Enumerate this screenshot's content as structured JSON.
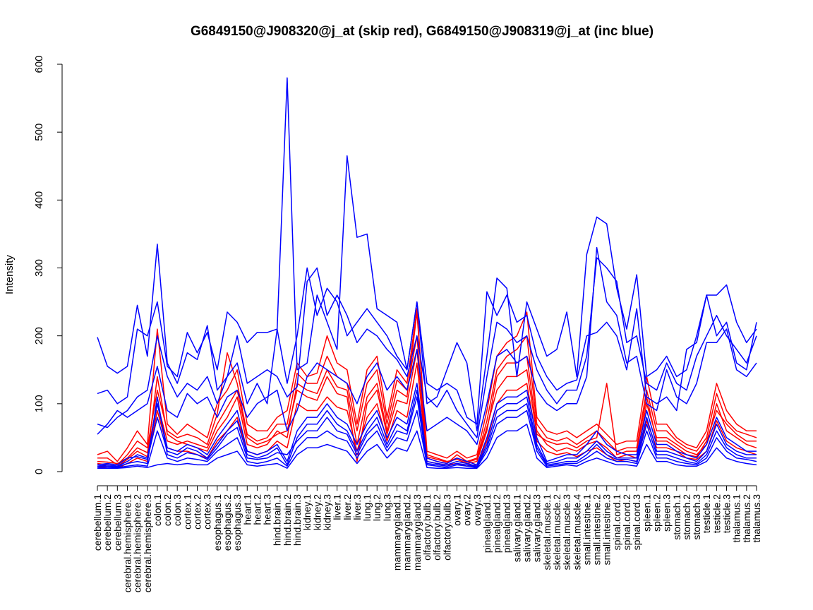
{
  "chart_data": {
    "type": "line",
    "title": "G6849150@J908320@j_at (skip red), G6849150@J908319@j_at (inc blue)",
    "xlabel": "",
    "ylabel": "Intensity",
    "ylim": [
      0,
      600
    ],
    "yticks": [
      0,
      100,
      200,
      300,
      400,
      500,
      600
    ],
    "grid": false,
    "colors": {
      "skip": "#ff0000",
      "inc": "#0000ff",
      "axis": "#000000"
    },
    "categories": [
      "cerebellum.1",
      "cerebellum.2",
      "cerebellum.3",
      "cerebral.hemisphere.1",
      "cerebral.hemisphere.2",
      "cerebral.hemisphere.3",
      "colon.1",
      "colon.2",
      "colon.3",
      "cortex.1",
      "cortex.2",
      "cortex.3",
      "esophagus.1",
      "esophagus.2",
      "esophagus.3",
      "heart.1",
      "heart.2",
      "heart.3",
      "hind.brain.1",
      "hind.brain.2",
      "hind.brain.3",
      "kidney.1",
      "kidney.2",
      "kidney.3",
      "liver.1",
      "liver.2",
      "liver.3",
      "lung.1",
      "lung.2",
      "lung.3",
      "mammarygland.1",
      "mammarygland.2",
      "mammarygland.3",
      "olfactory.bulb.1",
      "olfactory.bulb.2",
      "olfactory.bulb.3",
      "ovary.1",
      "ovary.2",
      "ovary.3",
      "pinealgland.1",
      "pinealgland.2",
      "pinealgland.3",
      "salivary.gland.1",
      "salivary.gland.2",
      "salivary.gland.3",
      "skeletal.muscle.1",
      "skeletal.muscle.2",
      "skeletal.muscle.3",
      "skeletal.muscle.4",
      "small.intestine.1",
      "small.intestine.2",
      "small.intestine.3",
      "spinal.cord.1",
      "spinal.cord.2",
      "spinal.cord.3",
      "spleen.1",
      "spleen.2",
      "spleen.3",
      "stomach.1",
      "stomach.2",
      "stomach.3",
      "testicle.1",
      "testicle.2",
      "testicle.3",
      "thalamus.1",
      "thalamus.2",
      "thalamus.3"
    ],
    "series": [
      {
        "name": "skip-1",
        "group": "skip",
        "values": [
          12,
          10,
          8,
          18,
          30,
          22,
          140,
          55,
          45,
          40,
          35,
          30,
          60,
          80,
          110,
          40,
          35,
          40,
          60,
          50,
          130,
          120,
          115,
          150,
          125,
          120,
          40,
          110,
          130,
          60,
          120,
          110,
          235,
          25,
          20,
          15,
          18,
          12,
          15,
          60,
          140,
          160,
          160,
          170,
          60,
          40,
          30,
          35,
          30,
          40,
          45,
          35,
          20,
          25,
          20,
          100,
          50,
          50,
          40,
          30,
          25,
          40,
          100,
          60,
          50,
          40,
          35
        ]
      },
      {
        "name": "skip-2",
        "group": "skip",
        "values": [
          25,
          30,
          15,
          35,
          60,
          40,
          210,
          70,
          55,
          70,
          60,
          50,
          100,
          120,
          150,
          70,
          60,
          60,
          80,
          90,
          160,
          140,
          145,
          200,
          160,
          150,
          70,
          150,
          170,
          80,
          150,
          130,
          240,
          30,
          25,
          20,
          30,
          20,
          25,
          90,
          170,
          190,
          200,
          235,
          80,
          60,
          55,
          60,
          50,
          60,
          70,
          55,
          40,
          45,
          45,
          140,
          70,
          70,
          50,
          40,
          35,
          60,
          130,
          90,
          70,
          60,
          60
        ]
      },
      {
        "name": "skip-3",
        "group": "skip",
        "values": [
          20,
          20,
          10,
          25,
          45,
          35,
          120,
          60,
          50,
          55,
          50,
          40,
          85,
          175,
          130,
          55,
          45,
          50,
          70,
          70,
          145,
          130,
          130,
          170,
          140,
          130,
          60,
          130,
          150,
          70,
          135,
          120,
          200,
          20,
          15,
          12,
          25,
          15,
          20,
          75,
          150,
          170,
          180,
          200,
          70,
          50,
          45,
          50,
          40,
          50,
          60,
          45,
          30,
          35,
          35,
          120,
          60,
          60,
          45,
          35,
          30,
          50,
          115,
          75,
          60,
          55,
          50
        ]
      },
      {
        "name": "skip-4",
        "group": "skip",
        "values": [
          8,
          6,
          5,
          12,
          20,
          15,
          90,
          35,
          30,
          30,
          25,
          20,
          45,
          60,
          80,
          30,
          25,
          30,
          45,
          35,
          100,
          90,
          90,
          110,
          95,
          90,
          30,
          80,
          100,
          45,
          90,
          80,
          160,
          15,
          12,
          10,
          12,
          8,
          10,
          45,
          100,
          120,
          120,
          130,
          45,
          30,
          25,
          28,
          22,
          30,
          35,
          25,
          15,
          18,
          15,
          75,
          35,
          35,
          30,
          20,
          18,
          30,
          75,
          45,
          35,
          30,
          25
        ]
      },
      {
        "name": "skip-5",
        "group": "skip",
        "values": [
          15,
          14,
          12,
          20,
          35,
          28,
          100,
          45,
          40,
          45,
          40,
          35,
          70,
          95,
          120,
          50,
          40,
          45,
          55,
          60,
          120,
          110,
          105,
          140,
          115,
          110,
          15,
          100,
          120,
          55,
          105,
          100,
          180,
          22,
          18,
          14,
          20,
          14,
          18,
          65,
          120,
          140,
          140,
          150,
          55,
          45,
          40,
          42,
          35,
          45,
          50,
          130,
          25,
          30,
          30,
          110,
          45,
          45,
          35,
          25,
          22,
          45,
          90,
          70,
          55,
          45,
          45
        ]
      },
      {
        "name": "inc-1",
        "group": "inc",
        "values": [
          198,
          155,
          145,
          155,
          245,
          170,
          335,
          160,
          130,
          175,
          165,
          215,
          120,
          140,
          160,
          100,
          130,
          100,
          210,
          580,
          150,
          160,
          260,
          220,
          180,
          465,
          345,
          350,
          240,
          230,
          220,
          150,
          250,
          100,
          110,
          150,
          190,
          160,
          60,
          170,
          285,
          270,
          140,
          250,
          210,
          170,
          180,
          235,
          140,
          320,
          375,
          365,
          270,
          210,
          290,
          140,
          150,
          170,
          140,
          150,
          200,
          260,
          260,
          275,
          220,
          190,
          210
        ]
      },
      {
        "name": "inc-2",
        "group": "inc",
        "values": [
          115,
          120,
          100,
          110,
          210,
          200,
          250,
          155,
          140,
          205,
          175,
          205,
          150,
          235,
          220,
          190,
          205,
          205,
          210,
          130,
          200,
          300,
          230,
          270,
          250,
          200,
          220,
          240,
          220,
          200,
          170,
          150,
          250,
          130,
          120,
          130,
          120,
          80,
          70,
          265,
          230,
          260,
          220,
          230,
          170,
          140,
          120,
          130,
          135,
          200,
          205,
          220,
          200,
          150,
          240,
          110,
          100,
          110,
          90,
          180,
          190,
          260,
          200,
          220,
          160,
          150,
          220
        ]
      },
      {
        "name": "inc-3",
        "group": "inc",
        "values": [
          70,
          65,
          80,
          90,
          110,
          120,
          200,
          140,
          110,
          130,
          120,
          140,
          100,
          140,
          200,
          130,
          140,
          150,
          140,
          110,
          125,
          280,
          300,
          230,
          260,
          230,
          190,
          210,
          200,
          180,
          165,
          140,
          200,
          110,
          95,
          120,
          90,
          70,
          50,
          140,
          220,
          210,
          190,
          200,
          150,
          120,
          100,
          120,
          120,
          170,
          315,
          300,
          280,
          190,
          200,
          130,
          120,
          160,
          130,
          120,
          170,
          200,
          230,
          200,
          180,
          160,
          200
        ]
      },
      {
        "name": "inc-4",
        "group": "inc",
        "values": [
          55,
          70,
          90,
          80,
          90,
          100,
          155,
          90,
          80,
          115,
          100,
          110,
          80,
          110,
          120,
          80,
          100,
          110,
          120,
          60,
          90,
          140,
          160,
          150,
          140,
          130,
          100,
          140,
          160,
          120,
          140,
          120,
          180,
          60,
          70,
          80,
          70,
          60,
          40,
          100,
          170,
          180,
          160,
          170,
          120,
          100,
          90,
          100,
          100,
          140,
          330,
          250,
          230,
          160,
          170,
          100,
          90,
          150,
          110,
          100,
          130,
          190,
          190,
          210,
          150,
          140,
          160
        ]
      },
      {
        "name": "inc-5",
        "group": "inc",
        "values": [
          8,
          10,
          8,
          15,
          25,
          20,
          100,
          35,
          30,
          40,
          35,
          25,
          50,
          70,
          90,
          30,
          25,
          30,
          40,
          15,
          60,
          80,
          80,
          100,
          80,
          70,
          40,
          70,
          90,
          50,
          80,
          70,
          130,
          20,
          15,
          12,
          20,
          15,
          10,
          50,
          100,
          110,
          110,
          120,
          50,
          15,
          20,
          25,
          25,
          40,
          60,
          40,
          30,
          25,
          25,
          90,
          40,
          40,
          30,
          25,
          20,
          40,
          80,
          50,
          40,
          30,
          30
        ]
      },
      {
        "name": "inc-6",
        "group": "inc",
        "values": [
          10,
          12,
          10,
          20,
          22,
          18,
          80,
          30,
          25,
          35,
          30,
          20,
          40,
          60,
          75,
          25,
          20,
          25,
          35,
          10,
          50,
          70,
          70,
          90,
          70,
          60,
          30,
          60,
          80,
          40,
          70,
          60,
          120,
          15,
          12,
          10,
          15,
          12,
          8,
          40,
          90,
          100,
          100,
          110,
          40,
          12,
          15,
          20,
          20,
          30,
          45,
          30,
          20,
          20,
          20,
          80,
          30,
          30,
          25,
          20,
          15,
          30,
          70,
          40,
          30,
          25,
          25
        ]
      },
      {
        "name": "inc-7",
        "group": "inc",
        "values": [
          6,
          6,
          6,
          8,
          10,
          8,
          60,
          20,
          15,
          20,
          18,
          15,
          30,
          40,
          50,
          15,
          12,
          15,
          20,
          8,
          35,
          50,
          50,
          60,
          50,
          45,
          20,
          45,
          60,
          30,
          50,
          45,
          90,
          10,
          8,
          6,
          10,
          8,
          6,
          30,
          70,
          80,
          80,
          90,
          30,
          8,
          10,
          12,
          12,
          20,
          30,
          20,
          15,
          15,
          12,
          60,
          20,
          20,
          15,
          12,
          10,
          20,
          50,
          30,
          20,
          18,
          15
        ]
      },
      {
        "name": "inc-8",
        "group": "inc",
        "values": [
          5,
          5,
          5,
          6,
          8,
          6,
          10,
          12,
          10,
          12,
          10,
          10,
          20,
          25,
          30,
          10,
          8,
          10,
          12,
          5,
          25,
          35,
          35,
          40,
          35,
          30,
          12,
          30,
          40,
          20,
          35,
          30,
          60,
          6,
          5,
          5,
          6,
          5,
          5,
          20,
          50,
          60,
          60,
          70,
          20,
          6,
          8,
          10,
          8,
          15,
          20,
          15,
          10,
          10,
          8,
          40,
          15,
          15,
          10,
          8,
          8,
          15,
          35,
          20,
          15,
          12,
          10
        ]
      },
      {
        "name": "inc-9",
        "group": "inc",
        "values": [
          8,
          8,
          7,
          12,
          15,
          12,
          110,
          25,
          20,
          28,
          25,
          18,
          35,
          55,
          65,
          20,
          18,
          20,
          28,
          25,
          45,
          60,
          60,
          80,
          60,
          55,
          25,
          55,
          70,
          35,
          60,
          55,
          110,
          12,
          10,
          8,
          12,
          10,
          7,
          35,
          80,
          90,
          90,
          100,
          35,
          10,
          12,
          15,
          15,
          25,
          40,
          25,
          18,
          18,
          15,
          70,
          25,
          25,
          20,
          15,
          12,
          25,
          60,
          35,
          25,
          20,
          20
        ]
      }
    ]
  }
}
